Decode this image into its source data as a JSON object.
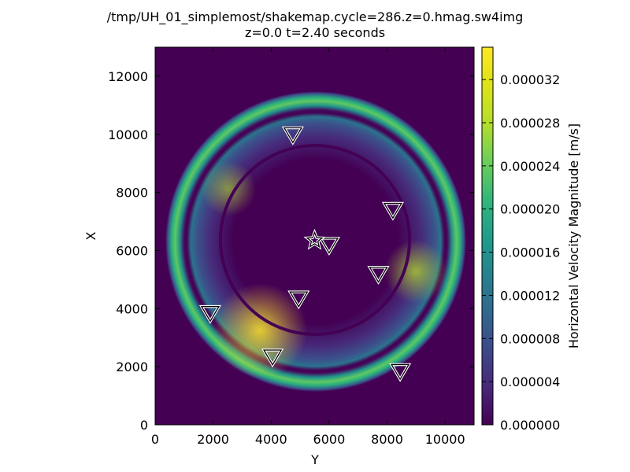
{
  "chart_data": {
    "type": "heatmap",
    "title": "/tmp/UH_01_simplemost/shakemap.cycle=286.z=0.hmag.sw4img",
    "subtitle": "z=0.0  t=2.40 seconds",
    "xlabel": "Y",
    "ylabel": "X",
    "xlim": [
      0,
      11000
    ],
    "ylim": [
      0,
      13000
    ],
    "x_ticks": [
      0,
      2000,
      4000,
      6000,
      8000,
      10000
    ],
    "y_ticks": [
      0,
      2000,
      4000,
      6000,
      8000,
      10000,
      12000
    ],
    "colormap": "viridis",
    "colorbar": {
      "label": "Horizontal Velocity Magnitude [m/s]",
      "range": [
        0,
        3.5e-05
      ],
      "ticks": [
        "0.000000",
        "0.000004",
        "0.000008",
        "0.000012",
        "0.000016",
        "0.000020",
        "0.000024",
        "0.000028",
        "0.000032"
      ],
      "tick_values": [
        0,
        4e-06,
        8e-06,
        1.2e-05,
        1.6e-05,
        2e-05,
        2.4e-05,
        2.8e-05,
        3.2e-05
      ]
    },
    "wavefield": {
      "center": [
        5500,
        6300
      ],
      "outer_ring_radius": 3650,
      "inner_dark_ring_radius": 3250,
      "max_value": 3.5e-05
    },
    "source": {
      "marker": "star",
      "x": 5500,
      "y": 6350
    },
    "stations": [
      {
        "marker": "triangle-down",
        "x": 4750,
        "y": 10000
      },
      {
        "marker": "triangle-down",
        "x": 8200,
        "y": 7400
      },
      {
        "marker": "triangle-down",
        "x": 6000,
        "y": 6200
      },
      {
        "marker": "triangle-down",
        "x": 7700,
        "y": 5200
      },
      {
        "marker": "triangle-down",
        "x": 4950,
        "y": 4350
      },
      {
        "marker": "triangle-down",
        "x": 1900,
        "y": 3850
      },
      {
        "marker": "triangle-down",
        "x": 4050,
        "y": 2350
      },
      {
        "marker": "triangle-down",
        "x": 8450,
        "y": 1850
      }
    ],
    "grid": false,
    "colors": {
      "background": "#440154",
      "frame": "#000000",
      "marker_edge": "#ffffff"
    }
  }
}
